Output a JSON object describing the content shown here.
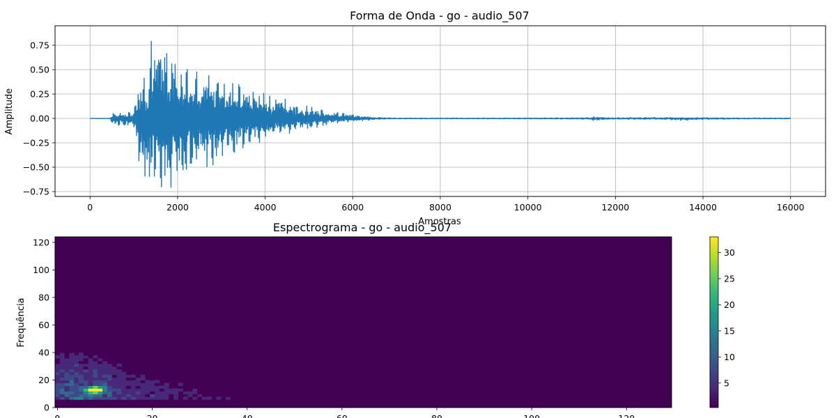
{
  "chart_data": [
    {
      "type": "line",
      "title": "Forma de Onda - go - audio_507",
      "xlabel": "Amostras",
      "ylabel": "Amplitude",
      "xlim": [
        -800,
        16800
      ],
      "ylim": [
        -0.8,
        0.95
      ],
      "xticks": [
        0,
        2000,
        4000,
        6000,
        8000,
        10000,
        12000,
        14000,
        16000
      ],
      "yticks": [
        -0.75,
        -0.5,
        -0.25,
        0.0,
        0.25,
        0.5,
        0.75
      ],
      "xtick_labels": [
        "0",
        "2000",
        "4000",
        "6000",
        "8000",
        "10000",
        "12000",
        "14000",
        "16000"
      ],
      "ytick_labels": [
        "−0.75",
        "−0.50",
        "−0.25",
        "0.00",
        "0.25",
        "0.50",
        "0.75"
      ],
      "grid": true,
      "line_color": "#1f77b4",
      "series": [
        {
          "name": "",
          "envelope": {
            "x": [
              0,
              450,
              500,
              800,
              1000,
              1100,
              1200,
              1350,
              1420,
              1500,
              1700,
              2000,
              2500,
              3000,
              3500,
              4000,
              4500,
              5000,
              5500,
              6000,
              6300,
              6600,
              7000,
              8000,
              10000,
              11400,
              11500,
              11700,
              12000,
              13000,
              13500,
              14000,
              15000,
              16000
            ],
            "upper": [
              0.0,
              0.0,
              0.05,
              0.06,
              0.06,
              0.36,
              0.37,
              0.55,
              0.92,
              0.8,
              0.8,
              0.5,
              0.5,
              0.45,
              0.37,
              0.28,
              0.19,
              0.12,
              0.07,
              0.04,
              0.02,
              0.01,
              0.005,
              0.005,
              0.005,
              0.008,
              0.018,
              0.012,
              0.008,
              0.01,
              0.01,
              0.008,
              0.006,
              0.005
            ],
            "lower": [
              0.0,
              0.0,
              -0.06,
              -0.08,
              -0.08,
              -0.45,
              -0.62,
              -0.7,
              -0.79,
              -0.78,
              -0.76,
              -0.65,
              -0.52,
              -0.45,
              -0.3,
              -0.25,
              -0.16,
              -0.11,
              -0.06,
              -0.035,
              -0.02,
              -0.01,
              -0.005,
              -0.005,
              -0.005,
              -0.008,
              -0.025,
              -0.015,
              -0.008,
              -0.01,
              -0.02,
              -0.01,
              -0.006,
              -0.005
            ]
          }
        }
      ]
    },
    {
      "type": "heatmap",
      "title": "Espectrograma - go - audio_507",
      "xlabel": "",
      "ylabel": "Frequência",
      "xlim": [
        -0.5,
        129.5
      ],
      "ylim": [
        0,
        124
      ],
      "xticks": [
        0,
        20,
        40,
        60,
        80,
        100,
        120
      ],
      "yticks": [
        0,
        20,
        40,
        60,
        80,
        100,
        120
      ],
      "xtick_labels": [
        "0",
        "20",
        "40",
        "60",
        "80",
        "100",
        "120"
      ],
      "ytick_labels": [
        "0",
        "20",
        "40",
        "60",
        "80",
        "100",
        "120"
      ],
      "colormap": "viridis",
      "colorbar": {
        "vmin": 0.3,
        "vmax": 33,
        "ticks": [
          5,
          10,
          15,
          20,
          25,
          30
        ],
        "tick_labels": [
          "5",
          "10",
          "15",
          "20",
          "25",
          "30"
        ]
      },
      "colors": {
        "viridis": [
          "#440154",
          "#482878",
          "#3e4989",
          "#31688e",
          "#26828e",
          "#1f9e89",
          "#35b779",
          "#6ece58",
          "#b5de2b",
          "#fde725"
        ]
      },
      "energy": {
        "description_free_values": true,
        "peak": {
          "x": 8,
          "y": 12,
          "value": 33
        },
        "envelope_time": [
          0,
          5,
          10,
          15,
          20,
          25,
          30,
          35,
          40,
          45,
          50,
          55,
          60,
          70,
          80,
          90,
          100,
          110,
          120,
          129
        ],
        "envelope_level": [
          12,
          14,
          12,
          8,
          6,
          4.5,
          3.5,
          3,
          2.5,
          2,
          1.5,
          1.2,
          0.8,
          0.5,
          0.4,
          0.4,
          0.3,
          0.3,
          0.3,
          0.3
        ],
        "envelope_freq_extent": [
          45,
          40,
          38,
          30,
          28,
          24,
          22,
          20,
          18,
          17,
          16,
          15,
          12,
          10,
          8,
          8,
          6,
          6,
          6,
          6
        ]
      }
    }
  ]
}
